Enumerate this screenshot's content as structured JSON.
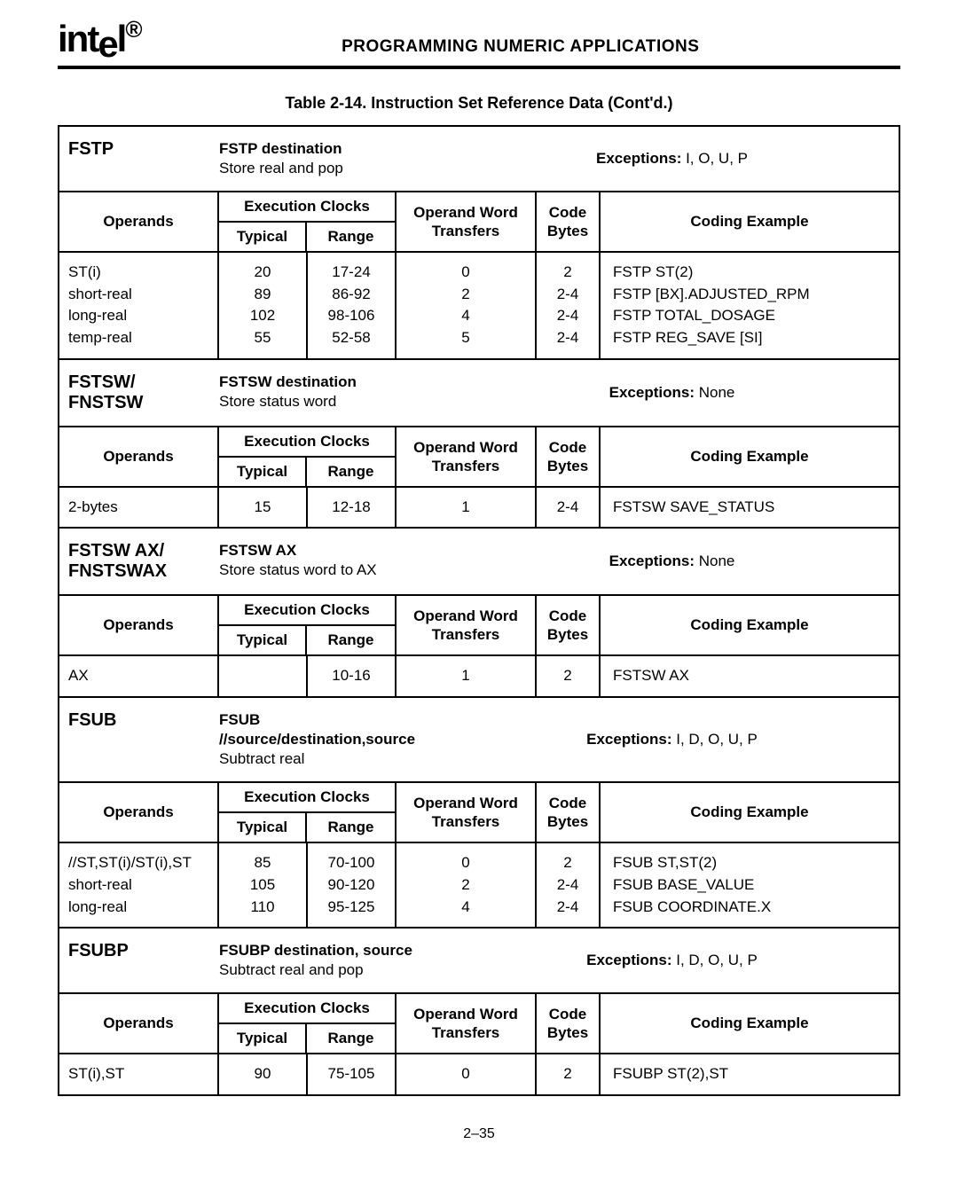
{
  "header": {
    "logo_html": "int<sub style='font-size:30px'>e</sub>l",
    "chapter_title": "PROGRAMMING NUMERIC APPLICATIONS"
  },
  "table_caption": "Table 2-14.  Instruction Set Reference Data (Cont'd.)",
  "page_number": "2–35",
  "columns": {
    "operands": "Operands",
    "exec_clocks": "Execution Clocks",
    "typical": "Typical",
    "range": "Range",
    "operand_word": "Operand Word\nTransfers",
    "code_bytes": "Code\nBytes",
    "coding_example": "Coding Example"
  },
  "instructions": [
    {
      "name": "FSTP",
      "desc1": "FSTP destination",
      "desc2": "Store real and pop",
      "exceptions": "Exceptions:  I, O, U, P",
      "rows": [
        {
          "op": "ST(i)",
          "typ": "20",
          "rng": "17-24",
          "opw": "0",
          "code": "2",
          "ex": "FSTP  ST(2)"
        },
        {
          "op": "short-real",
          "typ": "89",
          "rng": "86-92",
          "opw": "2",
          "code": "2-4",
          "ex": "FSTP  [BX].ADJUSTED_RPM"
        },
        {
          "op": "long-real",
          "typ": "102",
          "rng": "98-106",
          "opw": "4",
          "code": "2-4",
          "ex": "FSTP  TOTAL_DOSAGE"
        },
        {
          "op": "temp-real",
          "typ": "55",
          "rng": "52-58",
          "opw": "5",
          "code": "2-4",
          "ex": "FSTP  REG_SAVE [SI]"
        }
      ]
    },
    {
      "name": "FSTSW/\nFNSTSW",
      "desc1": "FSTSW destination",
      "desc2": "Store status word",
      "exceptions": "Exceptions:  None",
      "rows": [
        {
          "op": "2-bytes",
          "typ": "15",
          "rng": "12-18",
          "opw": "1",
          "code": "2-4",
          "ex": "FSTSW  SAVE_STATUS"
        }
      ]
    },
    {
      "name": "FSTSW AX/\nFNSTSWAX",
      "desc1": "FSTSW AX",
      "desc2": "Store status word to AX",
      "exceptions": "Exceptions:  None",
      "rows": [
        {
          "op": "AX",
          "typ": "",
          "rng": "10-16",
          "opw": "1",
          "code": "2",
          "ex": "FSTSW  AX"
        }
      ]
    },
    {
      "name": "FSUB",
      "desc1": "FSUB //source/destination,source",
      "desc2": "Subtract real",
      "exceptions": "Exceptions:  I, D, O, U, P",
      "rows": [
        {
          "op": "//ST,ST(i)/ST(i),ST",
          "typ": "85",
          "rng": "70-100",
          "opw": "0",
          "code": "2",
          "ex": "FSUB  ST,ST(2)"
        },
        {
          "op": "short-real",
          "typ": "105",
          "rng": "90-120",
          "opw": "2",
          "code": "2-4",
          "ex": "FSUB  BASE_VALUE"
        },
        {
          "op": "long-real",
          "typ": "110",
          "rng": "95-125",
          "opw": "4",
          "code": "2-4",
          "ex": "FSUB  COORDINATE.X"
        }
      ]
    },
    {
      "name": "FSUBP",
      "desc1": "FSUBP destination, source",
      "desc2": "Subtract real and pop",
      "exceptions": "Exceptions:  I, D, O, U, P",
      "rows": [
        {
          "op": "ST(i),ST",
          "typ": "90",
          "rng": "75-105",
          "opw": "0",
          "code": "2",
          "ex": "FSUBP  ST(2),ST"
        }
      ]
    }
  ]
}
